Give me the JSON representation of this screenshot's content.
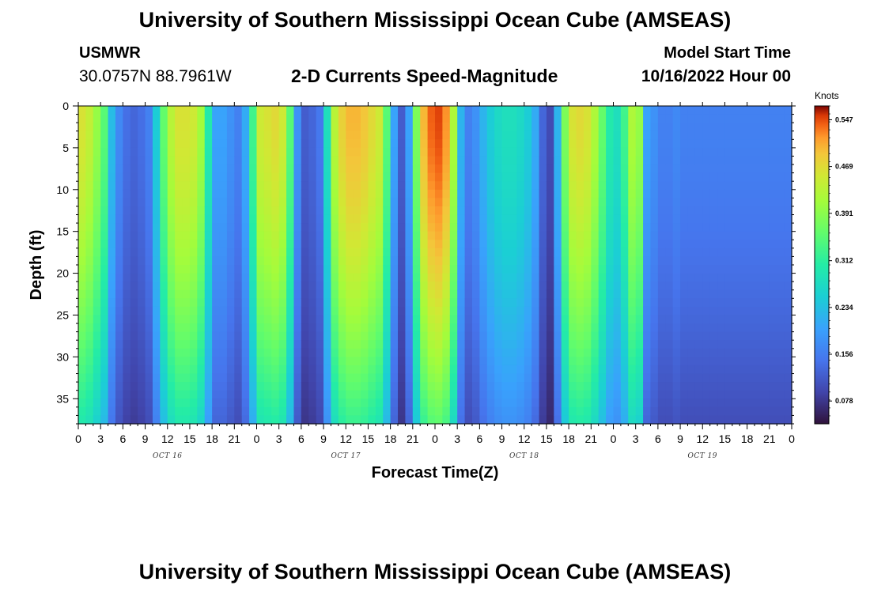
{
  "header": {
    "title": "University of Southern Mississippi Ocean Cube (AMSEAS)",
    "station_name": "USMWR",
    "station_coords": "30.0757N  88.7961W",
    "plot_title": "2-D Currents Speed-Magnitude",
    "model_label": "Model Start Time",
    "model_start": "10/16/2022 Hour 00"
  },
  "footer": {
    "title": "University of Southern Mississippi Ocean Cube (AMSEAS)"
  },
  "chart_data": {
    "type": "heatmap",
    "title": "2-D Currents Speed-Magnitude",
    "xlabel": "Forecast Time(Z)",
    "ylabel": "Depth (ft)",
    "xlim": [
      0,
      96
    ],
    "ylim": [
      38,
      0
    ],
    "x_ticks": [
      0,
      3,
      6,
      9,
      12,
      15,
      18,
      21,
      24,
      27,
      30,
      33,
      36,
      39,
      42,
      45,
      48,
      51,
      54,
      57,
      60,
      63,
      66,
      69,
      72,
      75,
      78,
      81,
      84,
      87,
      90,
      93,
      96
    ],
    "x_tick_labels": [
      "0",
      "3",
      "6",
      "9",
      "12",
      "15",
      "18",
      "21",
      "0",
      "3",
      "6",
      "9",
      "12",
      "15",
      "18",
      "21",
      "0",
      "3",
      "6",
      "9",
      "12",
      "15",
      "18",
      "21",
      "0",
      "3",
      "6",
      "9",
      "12",
      "15",
      "18",
      "21",
      "0"
    ],
    "day_labels": [
      {
        "label": "OCT 16",
        "hour": 12
      },
      {
        "label": "OCT 17",
        "hour": 36
      },
      {
        "label": "OCT 18",
        "hour": 60
      },
      {
        "label": "OCT 19",
        "hour": 84
      }
    ],
    "y_ticks": [
      0,
      5,
      10,
      15,
      20,
      25,
      30,
      35
    ],
    "y_tick_labels": [
      "0",
      "5",
      "10",
      "15",
      "20",
      "25",
      "30",
      "35"
    ],
    "surface_speed_knots": [
      {
        "hour": 0,
        "value": 0.46
      },
      {
        "hour": 1,
        "value": 0.44
      },
      {
        "hour": 2,
        "value": 0.4
      },
      {
        "hour": 3,
        "value": 0.35
      },
      {
        "hour": 4,
        "value": 0.23
      },
      {
        "hour": 5,
        "value": 0.17
      },
      {
        "hour": 6,
        "value": 0.14
      },
      {
        "hour": 7,
        "value": 0.13
      },
      {
        "hour": 8,
        "value": 0.14
      },
      {
        "hour": 9,
        "value": 0.16
      },
      {
        "hour": 10,
        "value": 0.25
      },
      {
        "hour": 11,
        "value": 0.36
      },
      {
        "hour": 12,
        "value": 0.43
      },
      {
        "hour": 13,
        "value": 0.46
      },
      {
        "hour": 14,
        "value": 0.46
      },
      {
        "hour": 15,
        "value": 0.45
      },
      {
        "hour": 16,
        "value": 0.41
      },
      {
        "hour": 17,
        "value": 0.3
      },
      {
        "hour": 18,
        "value": 0.2
      },
      {
        "hour": 19,
        "value": 0.2
      },
      {
        "hour": 20,
        "value": 0.18
      },
      {
        "hour": 21,
        "value": 0.16
      },
      {
        "hour": 22,
        "value": 0.21
      },
      {
        "hour": 23,
        "value": 0.33
      },
      {
        "hour": 24,
        "value": 0.45
      },
      {
        "hour": 25,
        "value": 0.46
      },
      {
        "hour": 26,
        "value": 0.47
      },
      {
        "hour": 27,
        "value": 0.45
      },
      {
        "hour": 28,
        "value": 0.35
      },
      {
        "hour": 29,
        "value": 0.18
      },
      {
        "hour": 30,
        "value": 0.12
      },
      {
        "hour": 31,
        "value": 0.13
      },
      {
        "hour": 32,
        "value": 0.15
      },
      {
        "hour": 33,
        "value": 0.28
      },
      {
        "hour": 34,
        "value": 0.43
      },
      {
        "hour": 35,
        "value": 0.48
      },
      {
        "hour": 36,
        "value": 0.5
      },
      {
        "hour": 37,
        "value": 0.5
      },
      {
        "hour": 38,
        "value": 0.49
      },
      {
        "hour": 39,
        "value": 0.47
      },
      {
        "hour": 40,
        "value": 0.45
      },
      {
        "hour": 41,
        "value": 0.35
      },
      {
        "hour": 42,
        "value": 0.2
      },
      {
        "hour": 43,
        "value": 0.12
      },
      {
        "hour": 44,
        "value": 0.2
      },
      {
        "hour": 45,
        "value": 0.38
      },
      {
        "hour": 46,
        "value": 0.5
      },
      {
        "hour": 47,
        "value": 0.54
      },
      {
        "hour": 48,
        "value": 0.55
      },
      {
        "hour": 49,
        "value": 0.52
      },
      {
        "hour": 50,
        "value": 0.42
      },
      {
        "hour": 51,
        "value": 0.22
      },
      {
        "hour": 52,
        "value": 0.16
      },
      {
        "hour": 53,
        "value": 0.18
      },
      {
        "hour": 54,
        "value": 0.22
      },
      {
        "hour": 55,
        "value": 0.25
      },
      {
        "hour": 56,
        "value": 0.27
      },
      {
        "hour": 57,
        "value": 0.28
      },
      {
        "hour": 58,
        "value": 0.28
      },
      {
        "hour": 59,
        "value": 0.27
      },
      {
        "hour": 60,
        "value": 0.25
      },
      {
        "hour": 61,
        "value": 0.21
      },
      {
        "hour": 62,
        "value": 0.13
      },
      {
        "hour": 63,
        "value": 0.1
      },
      {
        "hour": 64,
        "value": 0.22
      },
      {
        "hour": 65,
        "value": 0.38
      },
      {
        "hour": 66,
        "value": 0.46
      },
      {
        "hour": 67,
        "value": 0.47
      },
      {
        "hour": 68,
        "value": 0.46
      },
      {
        "hour": 69,
        "value": 0.42
      },
      {
        "hour": 70,
        "value": 0.36
      },
      {
        "hour": 71,
        "value": 0.3
      },
      {
        "hour": 72,
        "value": 0.28
      },
      {
        "hour": 73,
        "value": 0.33
      },
      {
        "hour": 74,
        "value": 0.42
      },
      {
        "hour": 75,
        "value": 0.4
      },
      {
        "hour": 76,
        "value": 0.2
      },
      {
        "hour": 77,
        "value": 0.18
      },
      {
        "hour": 78,
        "value": 0.16
      },
      {
        "hour": 79,
        "value": 0.16
      },
      {
        "hour": 80,
        "value": 0.17
      },
      {
        "hour": 81,
        "value": 0.16
      },
      {
        "hour": 82,
        "value": 0.16
      },
      {
        "hour": 83,
        "value": 0.16
      }
    ],
    "colorbar": {
      "label": "Knots",
      "min": 0.04,
      "max": 0.57,
      "ticks": [
        0.547,
        0.469,
        0.391,
        0.312,
        0.234,
        0.156,
        0.078
      ],
      "tick_labels": [
        "0.547",
        "0.469",
        "0.391",
        "0.312",
        "0.234",
        "0.156",
        "0.078"
      ]
    }
  }
}
